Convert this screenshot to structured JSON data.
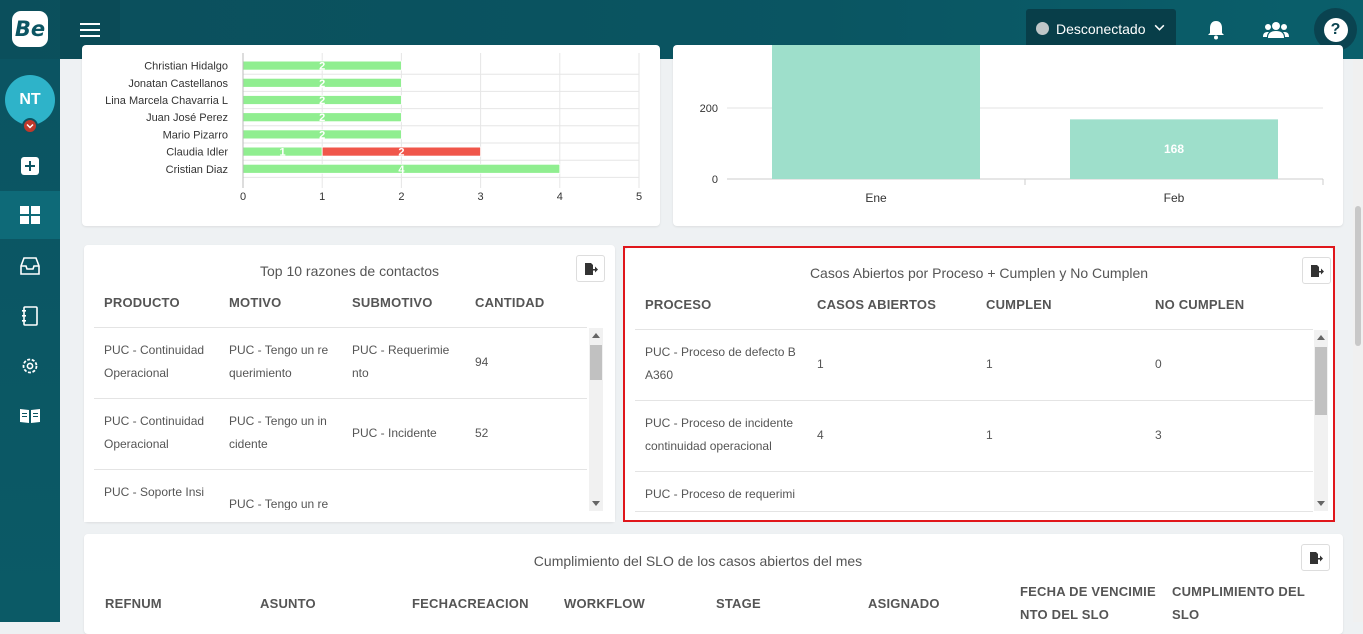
{
  "topbar": {
    "logo": "Be",
    "status": "Desconectado",
    "help": "?"
  },
  "sidebar": {
    "avatar": "NT",
    "items": [
      {
        "icon": "add-square-icon"
      },
      {
        "icon": "dashboard-icon",
        "active": true
      },
      {
        "icon": "inbox-icon"
      },
      {
        "icon": "notebook-icon"
      },
      {
        "icon": "gear-icon"
      },
      {
        "icon": "book-icon"
      }
    ]
  },
  "agent_chart": {
    "chart_data": {
      "type": "bar",
      "orientation": "horizontal",
      "stacked": true,
      "categories": [
        "Christian Hidalgo",
        "Jonatan Castellanos",
        "Lina Marcela Chavarria L",
        "Juan José Perez",
        "Mario Pizarro",
        "Claudia Idler",
        "Cristian Diaz"
      ],
      "series": [
        {
          "color": "#90ee90",
          "values": [
            2,
            2,
            2,
            2,
            2,
            1,
            4
          ]
        },
        {
          "color": "#f0564a",
          "values": [
            0,
            0,
            0,
            0,
            0,
            2,
            0
          ]
        }
      ],
      "xticks": [
        "0",
        "1",
        "2",
        "3",
        "4",
        "5"
      ],
      "xlim": [
        0,
        5
      ]
    }
  },
  "month_chart": {
    "chart_data": {
      "type": "bar",
      "categories": [
        "Ene",
        "Feb"
      ],
      "values": [
        null,
        168
      ],
      "data_labels": [
        "",
        "168"
      ],
      "yticks": [
        "0",
        "200"
      ],
      "color": "#9edfcb"
    }
  },
  "top10": {
    "title": "Top 10 razones de contactos",
    "columns": [
      "PRODUCTO",
      "MOTIVO",
      "SUBMOTIVO",
      "CANTIDAD"
    ],
    "rows": [
      {
        "producto": [
          "PUC - Continuidad",
          "Operacional"
        ],
        "motivo": [
          "PUC - Tengo un re",
          "querimiento"
        ],
        "submotivo": [
          "PUC - Requerimie",
          "nto"
        ],
        "cantidad": "94"
      },
      {
        "producto": [
          "PUC - Continuidad",
          "Operacional"
        ],
        "motivo": [
          "PUC - Tengo un in",
          "cidente"
        ],
        "submotivo": [
          "PUC - Incidente"
        ],
        "cantidad": "52"
      },
      {
        "producto": [
          "PUC - Soporte Insi"
        ],
        "motivo": [
          "PUC - Tengo un re"
        ],
        "submotivo": [],
        "cantidad": ""
      }
    ]
  },
  "casos": {
    "title": "Casos Abiertos por Proceso + Cumplen y No Cumplen",
    "columns": [
      "PROCESO",
      "CASOS ABIERTOS",
      "CUMPLEN",
      "NO CUMPLEN"
    ],
    "rows": [
      {
        "proceso": [
          "PUC - Proceso de defecto B",
          "A360"
        ],
        "abiertos": "1",
        "cumplen": "1",
        "no_cumplen": "0"
      },
      {
        "proceso": [
          "PUC - Proceso de incidente",
          "continuidad operacional"
        ],
        "abiertos": "4",
        "cumplen": "1",
        "no_cumplen": "3"
      },
      {
        "proceso": [
          "PUC - Proceso de requerimi"
        ],
        "abiertos": "",
        "cumplen": "",
        "no_cumplen": ""
      }
    ]
  },
  "slo": {
    "title": "Cumplimiento del SLO de los casos abiertos del mes",
    "columns": [
      [
        "REFNUM"
      ],
      [
        "ASUNTO"
      ],
      [
        "FECHACREACION"
      ],
      [
        "WORKFLOW"
      ],
      [
        "STAGE"
      ],
      [
        "ASIGNADO"
      ],
      [
        "FECHA DE VENCIMIE",
        "NTO DEL SLO"
      ],
      [
        "CUMPLIMIENTO DEL",
        "SLO"
      ]
    ]
  }
}
